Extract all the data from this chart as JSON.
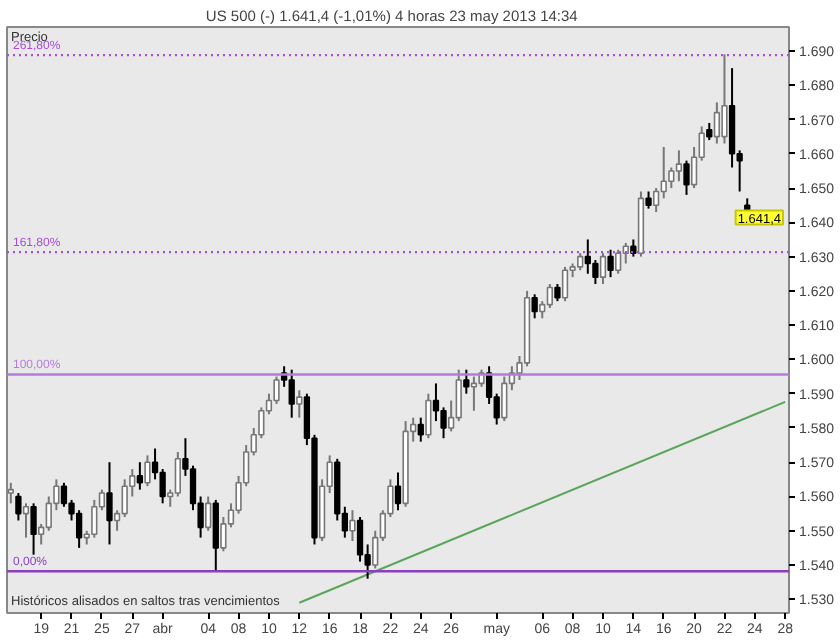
{
  "chart_data": {
    "type": "candlestick",
    "title": "US 500 (-)  1.641,4 (-1,01%)  4 horas  23 may 2013 14:34",
    "categories": [
      null,
      null,
      null,
      null,
      "19",
      null,
      null,
      null,
      "21",
      null,
      null,
      null,
      "25",
      null,
      null,
      null,
      "27",
      null,
      null,
      null,
      "abr",
      null,
      null,
      null,
      null,
      null,
      "04",
      null,
      null,
      null,
      "08",
      null,
      null,
      null,
      "10",
      null,
      null,
      null,
      "12",
      null,
      null,
      null,
      "16",
      null,
      null,
      null,
      "18",
      null,
      null,
      null,
      "22",
      null,
      null,
      null,
      "24",
      null,
      null,
      null,
      "26",
      null,
      null,
      null,
      null,
      null,
      "may",
      null,
      null,
      null,
      null,
      null,
      "06",
      null,
      null,
      null,
      "08",
      null,
      null,
      null,
      "10",
      null,
      null,
      null,
      "14",
      null,
      null,
      null,
      "16",
      null,
      null,
      null,
      "20",
      null,
      null,
      null,
      "22",
      null,
      null,
      null,
      "24",
      null,
      null,
      null,
      "28"
    ],
    "ohlc": [
      [
        1561,
        1564,
        1558,
        1562
      ],
      [
        1560,
        1561,
        1553,
        1555
      ],
      [
        1555,
        1558,
        1548,
        1557
      ],
      [
        1557,
        1558,
        1543,
        1549
      ],
      [
        1549,
        1552,
        1546,
        1551
      ],
      [
        1551,
        1560,
        1550,
        1558
      ],
      [
        1558,
        1565,
        1556,
        1563
      ],
      [
        1563,
        1564,
        1557,
        1558
      ],
      [
        1558,
        1559,
        1553,
        1555
      ],
      [
        1555,
        1556,
        1545,
        1548
      ],
      [
        1548,
        1550,
        1546,
        1549
      ],
      [
        1549,
        1559,
        1548,
        1557
      ],
      [
        1557,
        1562,
        1556,
        1561
      ],
      [
        1561,
        1570,
        1546,
        1553
      ],
      [
        1553,
        1556,
        1550,
        1555
      ],
      [
        1555,
        1565,
        1554,
        1563
      ],
      [
        1563,
        1568,
        1560,
        1566
      ],
      [
        1566,
        1570,
        1562,
        1564
      ],
      [
        1564,
        1572,
        1563,
        1570
      ],
      [
        1570,
        1574,
        1565,
        1567
      ],
      [
        1567,
        1568,
        1558,
        1560
      ],
      [
        1560,
        1562,
        1557,
        1561
      ],
      [
        1561,
        1573,
        1560,
        1571
      ],
      [
        1571,
        1577,
        1566,
        1568
      ],
      [
        1568,
        1569,
        1556,
        1558
      ],
      [
        1558,
        1560,
        1548,
        1551
      ],
      [
        1551,
        1560,
        1550,
        1558
      ],
      [
        1558,
        1559,
        1538,
        1545
      ],
      [
        1545,
        1554,
        1544,
        1552
      ],
      [
        1552,
        1558,
        1551,
        1556
      ],
      [
        1556,
        1566,
        1555,
        1564
      ],
      [
        1564,
        1575,
        1563,
        1573
      ],
      [
        1573,
        1580,
        1572,
        1578
      ],
      [
        1578,
        1586,
        1577,
        1585
      ],
      [
        1585,
        1590,
        1584,
        1588
      ],
      [
        1588,
        1595,
        1587,
        1594
      ],
      [
        1596,
        1598,
        1592,
        1594
      ],
      [
        1594,
        1597,
        1583,
        1587
      ],
      [
        1587,
        1591,
        1583,
        1589
      ],
      [
        1589,
        1590,
        1575,
        1577
      ],
      [
        1577,
        1578,
        1546,
        1548
      ],
      [
        1548,
        1565,
        1547,
        1563
      ],
      [
        1563,
        1572,
        1561,
        1570
      ],
      [
        1570,
        1571,
        1553,
        1555
      ],
      [
        1555,
        1557,
        1548,
        1550
      ],
      [
        1550,
        1556,
        1547,
        1553
      ],
      [
        1553,
        1554,
        1541,
        1543
      ],
      [
        1543,
        1546,
        1536,
        1540
      ],
      [
        1540,
        1550,
        1539,
        1548
      ],
      [
        1548,
        1556,
        1547,
        1555
      ],
      [
        1555,
        1565,
        1554,
        1563
      ],
      [
        1563,
        1567,
        1556,
        1558
      ],
      [
        1558,
        1582,
        1557,
        1579
      ],
      [
        1579,
        1583,
        1576,
        1581
      ],
      [
        1581,
        1583,
        1576,
        1578
      ],
      [
        1578,
        1590,
        1577,
        1588
      ],
      [
        1588,
        1593,
        1582,
        1585
      ],
      [
        1585,
        1586,
        1577,
        1580
      ],
      [
        1580,
        1588,
        1579,
        1583
      ],
      [
        1583,
        1597,
        1582,
        1594
      ],
      [
        1594,
        1597,
        1590,
        1592
      ],
      [
        1592,
        1595,
        1585,
        1593
      ],
      [
        1593,
        1597,
        1592,
        1596
      ],
      [
        1596,
        1598,
        1587,
        1589
      ],
      [
        1589,
        1590,
        1581,
        1583
      ],
      [
        1583,
        1595,
        1582,
        1593
      ],
      [
        1593,
        1598,
        1591,
        1596
      ],
      [
        1596,
        1601,
        1594,
        1599
      ],
      [
        1599,
        1620,
        1598,
        1618
      ],
      [
        1618,
        1619,
        1612,
        1614
      ],
      [
        1614,
        1617,
        1612,
        1616
      ],
      [
        1616,
        1622,
        1615,
        1621
      ],
      [
        1621,
        1622,
        1617,
        1618
      ],
      [
        1618,
        1627,
        1617,
        1626
      ],
      [
        1626,
        1628,
        1624,
        1627
      ],
      [
        1627,
        1631,
        1626,
        1630
      ],
      [
        1630,
        1635,
        1625,
        1628
      ],
      [
        1628,
        1629,
        1622,
        1624
      ],
      [
        1624,
        1631,
        1622,
        1630
      ],
      [
        1630,
        1632,
        1624,
        1626
      ],
      [
        1626,
        1632,
        1625,
        1631
      ],
      [
        1631,
        1634,
        1628,
        1633
      ],
      [
        1633,
        1635,
        1630,
        1631
      ],
      [
        1631,
        1649,
        1630,
        1647
      ],
      [
        1647,
        1649,
        1644,
        1645
      ],
      [
        1645,
        1650,
        1643,
        1649
      ],
      [
        1649,
        1662,
        1647,
        1652
      ],
      [
        1652,
        1656,
        1650,
        1655
      ],
      [
        1655,
        1661,
        1652,
        1657
      ],
      [
        1657,
        1658,
        1648,
        1651
      ],
      [
        1651,
        1662,
        1650,
        1659
      ],
      [
        1659,
        1668,
        1658,
        1666
      ],
      [
        1667,
        1669,
        1664,
        1665
      ],
      [
        1665,
        1675,
        1663,
        1672
      ],
      [
        1665,
        1689,
        1663,
        1674
      ],
      [
        1674,
        1685,
        1656,
        1660
      ],
      [
        1660,
        1661,
        1649,
        1658
      ],
      [
        1645,
        1647,
        1640,
        1641.4
      ],
      null,
      null,
      null,
      null,
      null
    ],
    "series": [
      {
        "type": "line",
        "color": "#5aa55a",
        "x": [
          "12",
          "28"
        ],
        "values": [
          1529,
          1587.6
        ]
      }
    ],
    "ylim": [
      1526,
      1697
    ],
    "yticks": [
      {
        "value": 1530,
        "label": "1.530"
      },
      {
        "value": 1540,
        "label": "1.540"
      },
      {
        "value": 1550,
        "label": "1.550"
      },
      {
        "value": 1560,
        "label": "1.560"
      },
      {
        "value": 1570,
        "label": "1.570"
      },
      {
        "value": 1580,
        "label": "1.580"
      },
      {
        "value": 1590,
        "label": "1.590"
      },
      {
        "value": 1600,
        "label": "1.600"
      },
      {
        "value": 1610,
        "label": "1.610"
      },
      {
        "value": 1620,
        "label": "1.620"
      },
      {
        "value": 1630,
        "label": "1.630"
      },
      {
        "value": 1640,
        "label": "1.640"
      },
      {
        "value": 1650,
        "label": "1.650"
      },
      {
        "value": 1660,
        "label": "1.660"
      },
      {
        "value": 1670,
        "label": "1.670"
      },
      {
        "value": 1680,
        "label": "1.680"
      },
      {
        "value": 1690,
        "label": "1.690"
      }
    ],
    "ref_lines": [
      {
        "axis": "y",
        "value": 1538.2,
        "color": "#8a3fc0",
        "line_style": "solid"
      },
      {
        "axis": "y",
        "value": 1595.6,
        "color": "#b57bdc",
        "line_style": "solid"
      },
      {
        "axis": "y",
        "value": 1631.3,
        "color": "#a64dd9",
        "line_style": "dotted"
      },
      {
        "axis": "y",
        "value": 1688.8,
        "color": "#a64dd9",
        "line_style": "dotted"
      }
    ],
    "annotations": [
      "Precio",
      "Históricos alisados en saltos tras vencimientos",
      "1.641,4",
      {
        "text": "0,00%",
        "y": 1538.2
      },
      {
        "text": "100,00%",
        "y": 1595.6
      },
      {
        "text": "161,80%",
        "y": 1631.3
      },
      {
        "text": "261,80%",
        "y": 1688.8
      }
    ],
    "grid": false
  }
}
